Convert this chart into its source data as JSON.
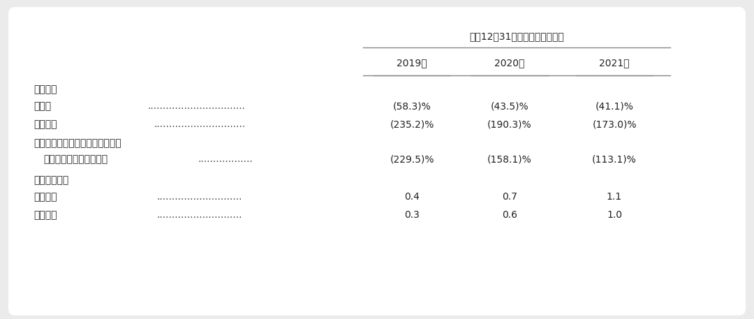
{
  "header_main": "截至12月31日及截至該日止年度",
  "col_headers": [
    "2019年",
    "2020年",
    "2021年"
  ],
  "section1_title": "盈利比率",
  "section2_title": "流動資金比率",
  "row_labels": [
    "毛損率",
    "淨虧損率",
    "經調整淨虧損率（非香港財務報告",
    "　　準則）（未經審計）",
    "流動比率",
    "速動比率"
  ],
  "dot_rows": [
    0,
    1,
    3,
    4,
    5
  ],
  "values": [
    [
      "(58.3)%",
      "(43.5)%",
      "(41.1)%"
    ],
    [
      "(235.2)%",
      "(190.3)%",
      "(173.0)%"
    ],
    [
      "",
      "",
      ""
    ],
    [
      "(229.5)%",
      "(158.1)%",
      "(113.1)%"
    ],
    [
      "0.4",
      "0.7",
      "1.1"
    ],
    [
      "0.3",
      "0.6",
      "1.0"
    ]
  ],
  "bg_color": "#ebebeb",
  "card_color": "#ffffff",
  "text_color": "#222222",
  "dot_color": "#444444",
  "line_color": "#888888",
  "font_size_main_header": 10.5,
  "font_size_col_header": 11.0,
  "font_size_body": 10.5,
  "font_size_section": 11.5
}
